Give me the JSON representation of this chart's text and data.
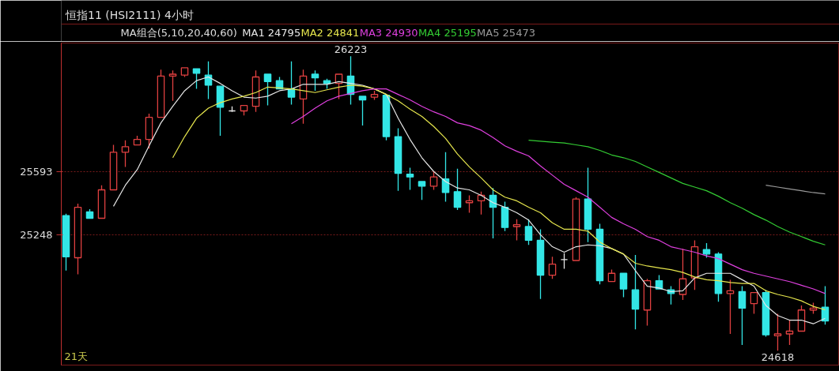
{
  "chart_data": {
    "type": "candlestick",
    "title": "恒指11 (HSI2111) 4小时",
    "legend_title": "MA组合(5,10,20,40,60)",
    "categories": [
      null,
      null,
      null,
      null,
      null,
      null,
      null,
      null,
      null,
      null,
      null,
      null,
      null,
      null,
      null,
      null,
      null,
      null,
      null,
      null,
      null,
      null,
      null,
      null,
      null,
      null,
      null,
      null,
      null,
      null,
      null,
      null,
      null,
      null,
      null,
      null,
      null,
      null,
      null,
      null,
      null,
      null,
      null,
      null,
      null,
      null,
      null,
      null,
      null,
      null,
      null,
      null,
      null,
      null,
      null,
      null,
      null,
      null,
      null,
      null,
      null,
      null,
      null,
      null,
      null
    ],
    "ohlc": [
      [
        25355,
        25365,
        25055,
        25130
      ],
      [
        25125,
        25420,
        25035,
        25400
      ],
      [
        25375,
        25390,
        25340,
        25340
      ],
      [
        25340,
        25520,
        25340,
        25495
      ],
      [
        25495,
        25740,
        25495,
        25700
      ],
      [
        25700,
        25765,
        25620,
        25730
      ],
      [
        25740,
        25790,
        25740,
        25770
      ],
      [
        25770,
        25910,
        25720,
        25890
      ],
      [
        25890,
        26150,
        25890,
        26115
      ],
      [
        26115,
        26145,
        25980,
        26125
      ],
      [
        26120,
        26160,
        26110,
        26160
      ],
      [
        26155,
        26155,
        26045,
        26130
      ],
      [
        26120,
        26195,
        25990,
        26065
      ],
      [
        26060,
        26060,
        25790,
        25945
      ],
      [
        25925,
        25950,
        25920,
        25925
      ],
      [
        25925,
        25955,
        25900,
        25955
      ],
      [
        25950,
        26145,
        25920,
        26110
      ],
      [
        26125,
        26125,
        25955,
        26085
      ],
      [
        26090,
        26110,
        26045,
        26045
      ],
      [
        26045,
        26195,
        25960,
        26000
      ],
      [
        25990,
        26150,
        25855,
        26115
      ],
      [
        26125,
        26145,
        26035,
        26105
      ],
      [
        26090,
        26100,
        26045,
        26075
      ],
      [
        26075,
        26125,
        25990,
        26125
      ],
      [
        26115,
        26223,
        25960,
        26015
      ],
      [
        26005,
        26005,
        25845,
        25985
      ],
      [
        26000,
        26035,
        25985,
        26015
      ],
      [
        26010,
        26010,
        25765,
        25785
      ],
      [
        25785,
        25830,
        25490,
        25585
      ],
      [
        25580,
        25615,
        25495,
        25565
      ],
      [
        25540,
        25540,
        25440,
        25515
      ],
      [
        25515,
        25595,
        25495,
        25565
      ],
      [
        25555,
        25700,
        25430,
        25480
      ],
      [
        25485,
        25610,
        25385,
        25400
      ],
      [
        25425,
        25465,
        25370,
        25435
      ],
      [
        25435,
        25485,
        25360,
        25465
      ],
      [
        25465,
        25505,
        25230,
        25400
      ],
      [
        25400,
        25430,
        25270,
        25290
      ],
      [
        25295,
        25335,
        25220,
        25305
      ],
      [
        25295,
        25335,
        25195,
        25220
      ],
      [
        25220,
        25280,
        24900,
        25030
      ],
      [
        25030,
        25130,
        25010,
        25090
      ],
      [
        25115,
        25150,
        25065,
        25115
      ],
      [
        25110,
        25455,
        25110,
        25445
      ],
      [
        25445,
        25615,
        25210,
        25280
      ],
      [
        25280,
        25310,
        24980,
        25000
      ],
      [
        24995,
        25060,
        24995,
        25040
      ],
      [
        25040,
        25040,
        24910,
        24955
      ],
      [
        24950,
        25140,
        24735,
        24845
      ],
      [
        24840,
        25010,
        24755,
        25000
      ],
      [
        25000,
        25030,
        24955,
        24955
      ],
      [
        24950,
        24970,
        24870,
        24930
      ],
      [
        24925,
        25175,
        24895,
        25010
      ],
      [
        25015,
        25220,
        24950,
        25185
      ],
      [
        25170,
        25205,
        25125,
        25145
      ],
      [
        25145,
        25155,
        24885,
        24930
      ],
      [
        24930,
        25005,
        24710,
        24945
      ],
      [
        24940,
        24970,
        24650,
        24850
      ],
      [
        24875,
        24935,
        24820,
        24935
      ],
      [
        24935,
        24950,
        24695,
        24705
      ],
      [
        24700,
        24820,
        24618,
        24710
      ],
      [
        24710,
        24785,
        24650,
        24725
      ],
      [
        24725,
        24865,
        24725,
        24840
      ],
      [
        24840,
        24880,
        24820,
        24850
      ],
      [
        24855,
        24970,
        24760,
        24780
      ]
    ],
    "colors": [
      "#33e6e6",
      "#e04040",
      "#33e6e6",
      "#e04040",
      "#e04040",
      "#e04040",
      "#e04040",
      "#e04040",
      "#e04040",
      "#e04040",
      "#e04040",
      "#33e6e6",
      "#33e6e6",
      "#33e6e6",
      "#e6e6e6",
      "#e04040",
      "#e04040",
      "#33e6e6",
      "#33e6e6",
      "#33e6e6",
      "#e04040",
      "#33e6e6",
      "#33e6e6",
      "#e04040",
      "#33e6e6",
      "#33e6e6",
      "#e04040",
      "#33e6e6",
      "#33e6e6",
      "#33e6e6",
      "#33e6e6",
      "#e04040",
      "#33e6e6",
      "#33e6e6",
      "#e04040",
      "#e04040",
      "#33e6e6",
      "#33e6e6",
      "#e04040",
      "#33e6e6",
      "#33e6e6",
      "#e04040",
      "#e6e6e6",
      "#e04040",
      "#33e6e6",
      "#33e6e6",
      "#e04040",
      "#33e6e6",
      "#33e6e6",
      "#e04040",
      "#33e6e6",
      "#33e6e6",
      "#e04040",
      "#e04040",
      "#33e6e6",
      "#33e6e6",
      "#e04040",
      "#33e6e6",
      "#e04040",
      "#33e6e6",
      "#e04040",
      "#e04040",
      "#e04040",
      "#e04040",
      "#33e6e6"
    ],
    "series": [
      {
        "type": "line",
        "name": "MA1 24795",
        "color": "#e6e6e6",
        "values": [
          null,
          null,
          null,
          null,
          25405,
          25520,
          25605,
          25735,
          25860,
          25950,
          26035,
          26090,
          26110,
          26075,
          26035,
          26000,
          25995,
          26005,
          26035,
          26045,
          26070,
          26070,
          26070,
          26085,
          26075,
          26065,
          26045,
          26015,
          25885,
          25770,
          25670,
          25595,
          25540,
          25505,
          25495,
          25465,
          25425,
          25400,
          25370,
          25330,
          25250,
          25185,
          25155,
          25185,
          25195,
          25190,
          25175,
          25145,
          25055,
          24970,
          24960,
          24940,
          24945,
          25015,
          25040,
          25040,
          25040,
          25005,
          24970,
          24865,
          24810,
          24785,
          24785,
          24765,
          24795
        ]
      },
      {
        "type": "line",
        "name": "MA2 24841",
        "color": "#e6e64d",
        "values": [
          null,
          null,
          null,
          null,
          null,
          null,
          null,
          null,
          null,
          25670,
          25785,
          25885,
          25940,
          25970,
          25990,
          26005,
          26025,
          26055,
          26050,
          26045,
          26035,
          26025,
          26040,
          26055,
          26065,
          26060,
          26045,
          26015,
          25980,
          25935,
          25895,
          25840,
          25775,
          25690,
          25620,
          25560,
          25495,
          25455,
          25435,
          25400,
          25370,
          25315,
          25280,
          25280,
          25270,
          25210,
          25175,
          25145,
          25095,
          25080,
          25070,
          25060,
          25045,
          25020,
          25005,
          25000,
          24990,
          24985,
          24985,
          24945,
          24925,
          24910,
          24890,
          24860,
          24841
        ]
      },
      {
        "type": "line",
        "name": "MA3 24930",
        "color": "#e040e0",
        "values": [
          null,
          null,
          null,
          null,
          null,
          null,
          null,
          null,
          null,
          null,
          null,
          null,
          null,
          null,
          null,
          null,
          null,
          null,
          null,
          25855,
          25895,
          25940,
          25980,
          26005,
          26020,
          26035,
          26045,
          26045,
          26015,
          25985,
          25950,
          25920,
          25895,
          25860,
          25845,
          25820,
          25780,
          25735,
          25705,
          25680,
          25625,
          25575,
          25525,
          25490,
          25455,
          25400,
          25345,
          25310,
          25280,
          25240,
          25220,
          25185,
          25170,
          25155,
          25135,
          25120,
          25090,
          25060,
          25040,
          25025,
          25010,
          24995,
          24975,
          24955,
          24930
        ]
      },
      {
        "type": "line",
        "name": "MA4 25195",
        "color": "#33cc33",
        "values": [
          null,
          null,
          null,
          null,
          null,
          null,
          null,
          null,
          null,
          null,
          null,
          null,
          null,
          null,
          null,
          null,
          null,
          null,
          null,
          null,
          null,
          null,
          null,
          null,
          null,
          null,
          null,
          null,
          null,
          null,
          null,
          null,
          null,
          null,
          null,
          null,
          null,
          null,
          null,
          25765,
          25760,
          25755,
          25750,
          25740,
          25730,
          25710,
          25685,
          25670,
          25650,
          25620,
          25590,
          25560,
          25530,
          25510,
          25490,
          25460,
          25425,
          25395,
          25360,
          25330,
          25295,
          25265,
          25240,
          25215,
          25195
        ]
      },
      {
        "type": "line",
        "name": "MA5 25473",
        "color": "#9a9a9a",
        "values": [
          null,
          null,
          null,
          null,
          null,
          null,
          null,
          null,
          null,
          null,
          null,
          null,
          null,
          null,
          null,
          null,
          null,
          null,
          null,
          null,
          null,
          null,
          null,
          null,
          null,
          null,
          null,
          null,
          null,
          null,
          null,
          null,
          null,
          null,
          null,
          null,
          null,
          null,
          null,
          null,
          null,
          null,
          null,
          null,
          null,
          null,
          null,
          null,
          null,
          null,
          null,
          null,
          null,
          null,
          null,
          null,
          null,
          null,
          null,
          25520,
          25510,
          25500,
          25490,
          25480,
          25473
        ]
      }
    ],
    "ylim": [
      24540,
      26295
    ],
    "yticks": [
      25593,
      25248
    ],
    "grid": "y",
    "tick_labels": "y",
    "annotations": [
      {
        "text": "26223",
        "y": 26223
      },
      {
        "text": "24618",
        "y": 24618
      },
      "21天"
    ]
  }
}
